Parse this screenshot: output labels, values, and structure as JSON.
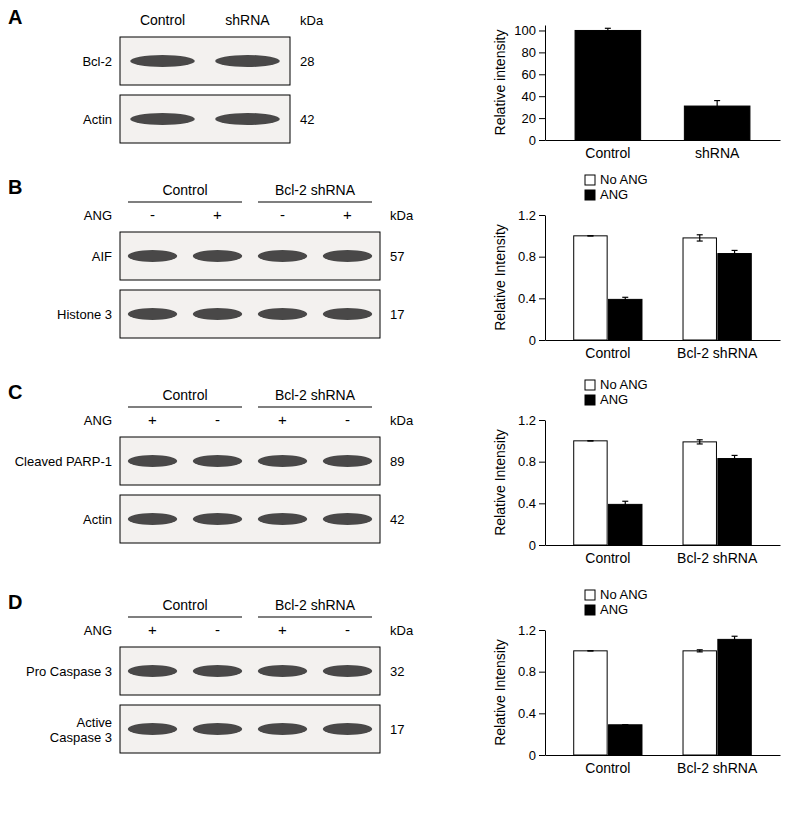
{
  "chart_data": [
    {
      "type": "bar",
      "y_label": "Relative intensity",
      "categories": [
        "Control",
        "shRNA"
      ],
      "values": [
        100,
        31
      ],
      "errors": [
        2,
        5
      ],
      "color": "#000000",
      "ylim": [
        0,
        105
      ],
      "yticks": [
        0,
        20,
        40,
        60,
        80,
        100
      ]
    },
    {
      "type": "bar",
      "y_label": "Relative Intensity",
      "categories": [
        "Control",
        "Bcl-2 shRNA"
      ],
      "series": [
        {
          "name": "No ANG",
          "color": "#ffffff",
          "values": [
            1.0,
            0.98
          ],
          "errors": [
            0,
            0.03
          ]
        },
        {
          "name": "ANG",
          "color": "#000000",
          "values": [
            0.39,
            0.83
          ],
          "errors": [
            0.02,
            0.03
          ]
        }
      ],
      "ylim": [
        0,
        1.2
      ],
      "yticks": [
        0,
        0.4,
        0.8,
        1.2
      ],
      "legend": "top"
    },
    {
      "type": "bar",
      "y_label": "Relative Intensity",
      "categories": [
        "Control",
        "Bcl-2 shRNA"
      ],
      "series": [
        {
          "name": "No ANG",
          "color": "#ffffff",
          "values": [
            1.0,
            0.99
          ],
          "errors": [
            0,
            0.02
          ]
        },
        {
          "name": "ANG",
          "color": "#000000",
          "values": [
            0.39,
            0.83
          ],
          "errors": [
            0.03,
            0.03
          ]
        }
      ],
      "ylim": [
        0,
        1.2
      ],
      "yticks": [
        0,
        0.4,
        0.8,
        1.2
      ],
      "legend": "top"
    },
    {
      "type": "bar",
      "y_label": "Relative Intensity",
      "categories": [
        "Control",
        "Bcl-2 shRNA"
      ],
      "series": [
        {
          "name": "No ANG",
          "color": "#ffffff",
          "values": [
            1.0,
            1.0
          ],
          "errors": [
            0,
            0.01
          ]
        },
        {
          "name": "ANG",
          "color": "#000000",
          "values": [
            0.29,
            1.11
          ],
          "errors": [
            0,
            0.03
          ]
        }
      ],
      "ylim": [
        0,
        1.2
      ],
      "yticks": [
        0,
        0.4,
        0.8,
        1.2
      ],
      "legend": "top"
    }
  ],
  "blots": [
    {
      "panel": "A",
      "columns": [
        "Control",
        "shRNA"
      ],
      "kda_header": "kDa",
      "rows": [
        {
          "label": [
            "Bcl-2"
          ],
          "kda": 28
        },
        {
          "label": [
            "Actin"
          ],
          "kda": 42
        }
      ]
    },
    {
      "panel": "B",
      "groups": [
        "Control",
        "Bcl-2 shRNA"
      ],
      "treatment": "ANG",
      "lanes": [
        "-",
        "+",
        "-",
        "+"
      ],
      "kda_header": "kDa",
      "rows": [
        {
          "label": [
            "AIF"
          ],
          "kda": 57
        },
        {
          "label": [
            "Histone 3"
          ],
          "kda": 17
        }
      ]
    },
    {
      "panel": "C",
      "groups": [
        "Control",
        "Bcl-2 shRNA"
      ],
      "treatment": "ANG",
      "lanes": [
        "+",
        "-",
        "+",
        "-"
      ],
      "kda_header": "kDa",
      "rows": [
        {
          "label": [
            "Cleaved PARP-1"
          ],
          "kda": 89
        },
        {
          "label": [
            "Actin"
          ],
          "kda": 42
        }
      ]
    },
    {
      "panel": "D",
      "groups": [
        "Control",
        "Bcl-2 shRNA"
      ],
      "treatment": "ANG",
      "lanes": [
        "+",
        "-",
        "+",
        "-"
      ],
      "kda_header": "kDa",
      "rows": [
        {
          "label": [
            "Pro Caspase 3"
          ],
          "kda": 32
        },
        {
          "label": [
            "Active",
            "Caspase 3"
          ],
          "kda": 17
        }
      ]
    }
  ]
}
